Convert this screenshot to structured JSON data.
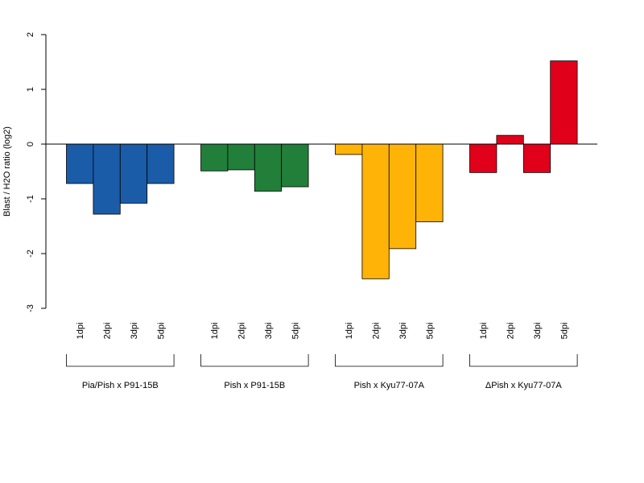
{
  "chart_data": {
    "type": "bar",
    "title": "",
    "ylabel": "Blast / H2O ratio (log2)",
    "xlabel": "",
    "ylim": [
      -3,
      2
    ],
    "yticks": [
      -3,
      -2,
      -1,
      0,
      1,
      2
    ],
    "grid": false,
    "legend": "none",
    "bar_labels": [
      "1dpi",
      "2dpi",
      "3dpi",
      "5dpi"
    ],
    "groups": [
      {
        "name": "Pia/Pish x P91-15B",
        "color": "#1a5ca8",
        "values": [
          -0.72,
          -1.28,
          -1.08,
          -0.72
        ]
      },
      {
        "name": "Pish x P91-15B",
        "color": "#217f3a",
        "values": [
          -0.49,
          -0.47,
          -0.86,
          -0.78
        ]
      },
      {
        "name": "Pish x Kyu77-07A",
        "color": "#ffb307",
        "values": [
          -0.19,
          -2.46,
          -1.91,
          -1.42
        ]
      },
      {
        "name": "ΔPish x Kyu77-07A",
        "color": "#e0001a",
        "values": [
          -0.52,
          0.16,
          -0.52,
          1.52
        ]
      }
    ]
  }
}
